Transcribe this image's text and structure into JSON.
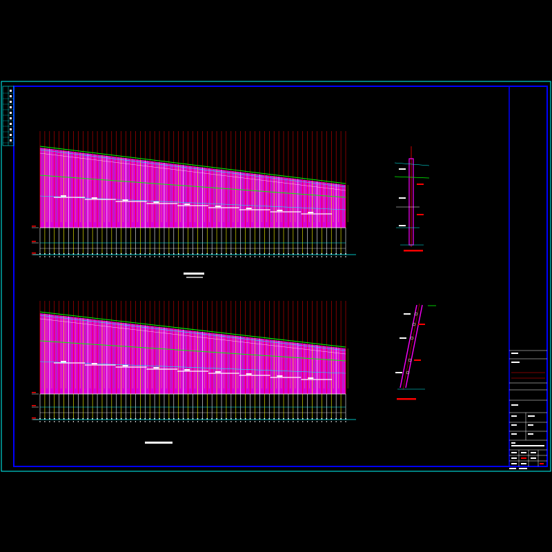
{
  "drawing": {
    "background": "#000000",
    "colors": {
      "outer_frame": "#00ffff",
      "inner_frame": "#0000ff",
      "pile_fill": "#ff00ff",
      "pile_line_red": "#ff0000",
      "pile_line_yellow": "#ffff00",
      "pile_line_cyan": "#00ffff",
      "pile_line_white": "#ffffff",
      "pile_line_green": "#00ff00",
      "top_line_green": "#00ff00",
      "ground_line": "#00ffff",
      "title_underline": "#ff0000",
      "title_block_line": "#ffffff"
    },
    "elevation_views": 2,
    "section_details": 2
  }
}
